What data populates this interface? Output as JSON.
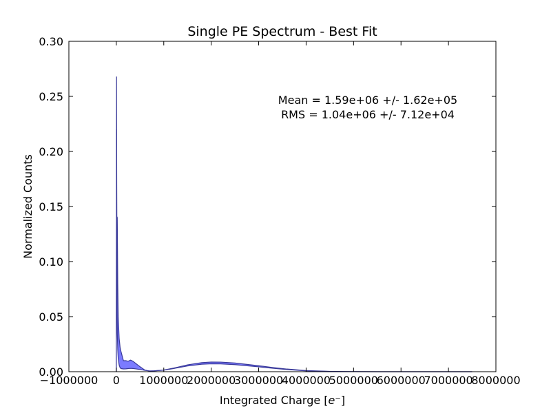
{
  "chart_data": {
    "type": "area",
    "title": "Single PE Spectrum - Best Fit",
    "xlabel": "Integrated Charge",
    "xlabel_unit": "e⁻",
    "ylabel": "Normalized Counts",
    "xlim": [
      -1000000,
      8000000
    ],
    "ylim": [
      0,
      0.3
    ],
    "xticks": [
      -1000000,
      0,
      1000000,
      2000000,
      3000000,
      4000000,
      5000000,
      6000000,
      7000000,
      8000000
    ],
    "xtick_labels": [
      "−1000000",
      "0",
      "1000000",
      "2000000",
      "3000000",
      "4000000",
      "5000000",
      "6000000",
      "7000000",
      "8000000"
    ],
    "yticks": [
      0.0,
      0.05,
      0.1,
      0.15,
      0.2,
      0.25,
      0.3
    ],
    "ytick_labels": [
      "0.00",
      "0.05",
      "0.10",
      "0.15",
      "0.20",
      "0.25",
      "0.30"
    ],
    "grid": false,
    "fill_color": "#7b7bff",
    "line_color": "#3a3a9a",
    "annotations": [
      "Mean = 1.59e+06 +/- 1.62e+05",
      "RMS = 1.04e+06 +/- 7.12e+04"
    ],
    "series": [
      {
        "role": "upper",
        "x": [
          0,
          5000,
          10000,
          20000,
          30000,
          40000,
          60000,
          80000,
          100000,
          150000,
          200000,
          250000,
          300000,
          350000,
          400000,
          500000,
          600000,
          700000,
          800000,
          1000000,
          1200000,
          1500000,
          1800000,
          2000000,
          2200000,
          2500000,
          2800000,
          3000000,
          3300000,
          3600000,
          4000000,
          4500000,
          5000000,
          5500000,
          6000000,
          7000000,
          7500000
        ],
        "y": [
          0.0,
          0.268,
          0.141,
          0.14,
          0.08,
          0.05,
          0.03,
          0.022,
          0.018,
          0.01,
          0.01,
          0.0095,
          0.0105,
          0.0095,
          0.0078,
          0.0045,
          0.0015,
          0.0006,
          0.0008,
          0.0015,
          0.0032,
          0.0062,
          0.0082,
          0.0088,
          0.0087,
          0.0079,
          0.0064,
          0.0054,
          0.0038,
          0.0024,
          0.001,
          0.0003,
          0.0001,
          0.0,
          0.0,
          0.0,
          0.0
        ]
      },
      {
        "role": "lower",
        "x": [
          0,
          5000,
          10000,
          20000,
          30000,
          40000,
          60000,
          80000,
          100000,
          150000,
          200000,
          250000,
          300000,
          350000,
          400000,
          500000,
          600000,
          700000,
          800000,
          1000000,
          1200000,
          1500000,
          1800000,
          2000000,
          2200000,
          2500000,
          2800000,
          3000000,
          3300000,
          3600000,
          4000000,
          4500000,
          5000000,
          5500000,
          6000000,
          7000000,
          7500000
        ],
        "y": [
          0.0,
          0.22,
          0.12,
          0.035,
          0.02,
          0.012,
          0.006,
          0.0035,
          0.0028,
          0.0025,
          0.0026,
          0.0028,
          0.003,
          0.0029,
          0.0026,
          0.002,
          0.0012,
          0.0007,
          0.0008,
          0.0014,
          0.0028,
          0.0052,
          0.0068,
          0.0072,
          0.0071,
          0.0064,
          0.0052,
          0.0044,
          0.0031,
          0.0019,
          0.0008,
          0.0002,
          0.0001,
          0.0,
          0.0,
          0.0,
          0.0
        ]
      }
    ]
  }
}
